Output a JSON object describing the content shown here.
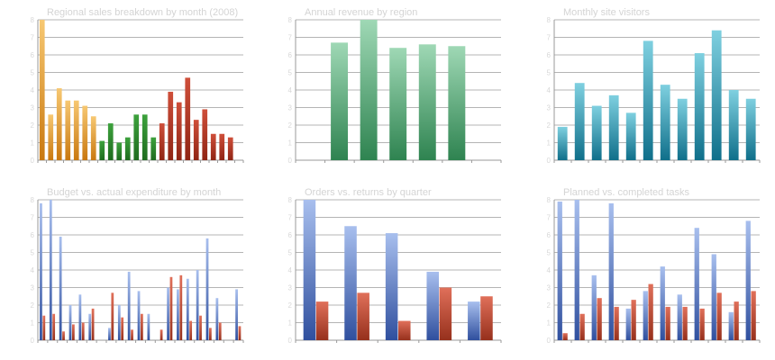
{
  "panels": [
    {
      "title": "Regional sales breakdown by month (2008)"
    },
    {
      "title": "Annual revenue by region"
    },
    {
      "title": "Monthly site visitors"
    },
    {
      "title": "Budget vs. actual expenditure by month"
    },
    {
      "title": "Orders vs. returns by quarter"
    },
    {
      "title": "Planned vs. completed tasks"
    }
  ],
  "chart_data": [
    {
      "type": "bar",
      "title": "Regional sales breakdown by month (2008)",
      "ylim": [
        0,
        8
      ],
      "grid": true,
      "series": [
        {
          "values": [
            8,
            2.6,
            4.1,
            3.4,
            3.4,
            3.1,
            2.5,
            0,
            0,
            0,
            0,
            0,
            0,
            0,
            0,
            0,
            0,
            0,
            0,
            0,
            0,
            0,
            0,
            0
          ],
          "color_top": "#f7c872",
          "color_bottom": "#c9780f"
        },
        {
          "values": [
            0,
            0,
            0,
            0,
            0,
            0,
            0,
            1.1,
            2.1,
            1.0,
            1.3,
            2.6,
            2.6,
            1.3,
            0,
            0,
            0,
            0,
            0,
            0,
            0,
            0,
            0,
            0
          ],
          "color_top": "#3da23d",
          "color_bottom": "#1f6b1f"
        },
        {
          "values": [
            0,
            0,
            0,
            0,
            0,
            0,
            0,
            0,
            0,
            0,
            0,
            0,
            0,
            0,
            2.1,
            3.9,
            3.3,
            4.7,
            2.3,
            2.9,
            1.5,
            1.5,
            1.3,
            0
          ],
          "color_top": "#cf4f3a",
          "color_bottom": "#8f2414"
        }
      ]
    },
    {
      "type": "bar",
      "title": "Annual revenue by region",
      "ylim": [
        0,
        8
      ],
      "grid": true,
      "series": [
        {
          "values": [
            0,
            6.7,
            8,
            6.4,
            6.6,
            6.5,
            0
          ],
          "color_top": "#9fd8b5",
          "color_bottom": "#2e8350"
        }
      ]
    },
    {
      "type": "bar",
      "title": "Monthly site visitors",
      "ylim": [
        0,
        8
      ],
      "grid": true,
      "series": [
        {
          "values": [
            1.9,
            4.4,
            3.1,
            3.7,
            2.7,
            6.8,
            4.3,
            3.5,
            6.1,
            7.4,
            4.0,
            3.5
          ],
          "color_top": "#7fd0e0",
          "color_bottom": "#0f6f8a"
        }
      ]
    },
    {
      "type": "bar",
      "title": "Budget vs. actual expenditure by month",
      "ylim": [
        0,
        8
      ],
      "grid": true,
      "series": [
        {
          "name": "",
          "values": [
            7.8,
            8,
            5.9,
            2.0,
            2.6,
            1.5,
            0,
            0.7,
            2.0,
            3.9,
            2.8,
            1.5,
            0,
            3.0,
            2.9,
            3.5,
            4.0,
            5.8,
            2.4,
            0,
            2.9
          ],
          "color_top": "#a8bfee",
          "color_bottom": "#2f4f9e"
        },
        {
          "name": "",
          "values": [
            1.4,
            1.5,
            0.5,
            0.9,
            1.0,
            1.8,
            0,
            2.7,
            1.3,
            0.6,
            1.5,
            0,
            0.6,
            3.6,
            3.7,
            1.1,
            1.4,
            0.7,
            1.0,
            0,
            0.8
          ],
          "color_top": "#e0705a",
          "color_bottom": "#96301c"
        }
      ]
    },
    {
      "type": "bar",
      "title": "Orders vs. returns by quarter",
      "ylim": [
        0,
        8
      ],
      "grid": true,
      "series": [
        {
          "name": "",
          "values": [
            8,
            6.5,
            6.1,
            3.9,
            2.2
          ],
          "color_top": "#a8bfee",
          "color_bottom": "#2f4f9e"
        },
        {
          "name": "",
          "values": [
            2.2,
            2.7,
            1.1,
            3.0,
            2.5
          ],
          "color_top": "#e0705a",
          "color_bottom": "#96301c"
        }
      ]
    },
    {
      "type": "bar",
      "title": "Planned vs. completed tasks",
      "ylim": [
        0,
        8
      ],
      "grid": true,
      "series": [
        {
          "name": "",
          "values": [
            7.9,
            8,
            3.7,
            7.8,
            1.8,
            2.8,
            4.2,
            2.6,
            6.4,
            4.9,
            1.6,
            6.8
          ],
          "color_top": "#a8bfee",
          "color_bottom": "#2f4f9e"
        },
        {
          "name": "",
          "values": [
            0.4,
            1.5,
            2.4,
            1.9,
            2.3,
            3.2,
            1.9,
            1.9,
            1.8,
            2.7,
            2.2,
            2.8
          ],
          "color_top": "#e0705a",
          "color_bottom": "#96301c"
        }
      ]
    }
  ]
}
